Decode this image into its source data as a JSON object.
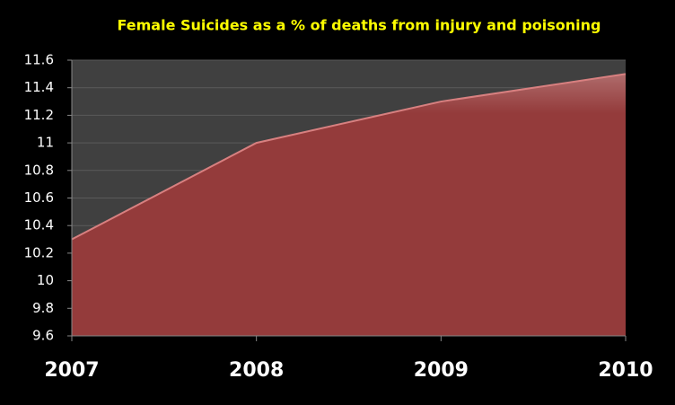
{
  "chart_data": {
    "type": "area",
    "title": "Female Suicides as a % of deaths from injury and poisoning",
    "categories": [
      "2007",
      "2008",
      "2009",
      "2010"
    ],
    "values": [
      10.3,
      11.0,
      11.3,
      11.5
    ],
    "color": "#943b3b",
    "ylim": [
      9.6,
      11.6
    ],
    "yticks": [
      9.6,
      9.8,
      10,
      10.2,
      10.4,
      10.6,
      10.8,
      11,
      11.2,
      11.4,
      11.6
    ],
    "grid": true
  }
}
